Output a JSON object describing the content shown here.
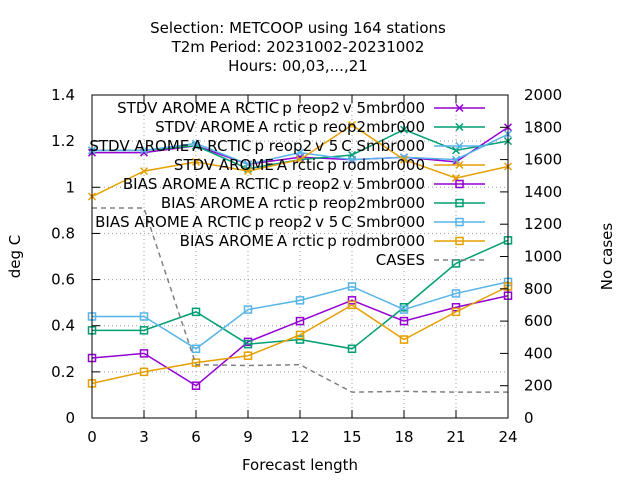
{
  "chart_data": {
    "type": "line",
    "title_lines": [
      "Selection: METCOOP using   164 stations",
      "T2m   Period: 20231002-20231002",
      "Hours:  00,03,...,21"
    ],
    "xlabel": "Forecast length",
    "ylabel": "deg C",
    "y2label": "No cases",
    "x": [
      0,
      3,
      6,
      9,
      12,
      15,
      18,
      21,
      24
    ],
    "xlim": [
      0,
      24
    ],
    "ylim": [
      0,
      1.4
    ],
    "y2lim": [
      0,
      2000
    ],
    "yticks": [
      "0",
      "0.2",
      "0.4",
      "0.6",
      "0.8",
      "1",
      "1.2",
      "1.4"
    ],
    "y2ticks": [
      "0",
      "200",
      "400",
      "600",
      "800",
      "1000",
      "1200",
      "1400",
      "1600",
      "1800",
      "2000"
    ],
    "grid": true,
    "legend_position": "top-right",
    "series": [
      {
        "name": "STDV AROME_ARCTIC_preop2_v5mbr000",
        "legend_label": "STDV AROME A RCTIC p reop2 v 5mbr000",
        "color": "#9400d3",
        "marker": "x",
        "values": [
          1.15,
          1.15,
          1.18,
          1.1,
          1.13,
          1.12,
          1.13,
          1.11,
          1.26
        ]
      },
      {
        "name": "STDV AROME_Arctic_preop2mbr000",
        "legend_label": "STDV AROME A rctic p reop2mbr000",
        "color": "#009e73",
        "marker": "x",
        "values": [
          1.16,
          1.16,
          1.18,
          1.08,
          1.12,
          1.14,
          1.25,
          1.16,
          1.2
        ]
      },
      {
        "name": "STDV AROME_ARCTIC_preop2_v5_CSmbr000",
        "legend_label": "STDV AROME A RCTIC p reop2 v 5 C Smbr000",
        "color": "#56b4e9",
        "marker": "x",
        "values": [
          1.16,
          1.16,
          1.19,
          1.1,
          1.15,
          1.12,
          1.13,
          1.12,
          1.23
        ]
      },
      {
        "name": "STDV AROME_Arctic_prodmbr000",
        "legend_label": "STDV AROME A rctic p rodmbr000",
        "color": "#e69f00",
        "marker": "x",
        "values": [
          0.96,
          1.07,
          1.11,
          1.07,
          1.12,
          1.27,
          1.12,
          1.04,
          1.09
        ]
      },
      {
        "name": "BIAS AROME_ARCTIC_preop2_v5mbr000",
        "legend_label": "BIAS AROME A RCTIC p reop2 v 5mbr000",
        "color": "#9400d3",
        "marker": "square",
        "values": [
          0.26,
          0.28,
          0.14,
          0.33,
          0.42,
          0.51,
          0.42,
          0.48,
          0.53
        ]
      },
      {
        "name": "BIAS AROME_Arctic_preop2mbr000",
        "legend_label": "BIAS AROME A rctic p reop2mbr000",
        "color": "#009e73",
        "marker": "square",
        "values": [
          0.38,
          0.38,
          0.46,
          0.32,
          0.34,
          0.3,
          0.48,
          0.67,
          0.77
        ]
      },
      {
        "name": "BIAS AROME_ARCTIC_preop2_v5_CSmbr000",
        "legend_label": "BIAS AROME A RCTIC p reop2 v 5 C Smbr000",
        "color": "#56b4e9",
        "marker": "square",
        "values": [
          0.44,
          0.44,
          0.3,
          0.47,
          0.51,
          0.57,
          0.47,
          0.54,
          0.59
        ]
      },
      {
        "name": "BIAS AROME_Arctic_prodmbr000",
        "legend_label": "BIAS AROME A rctic p rodmbr000",
        "color": "#e69f00",
        "marker": "square",
        "values": [
          0.15,
          0.2,
          0.24,
          0.27,
          0.36,
          0.49,
          0.34,
          0.46,
          0.57
        ]
      },
      {
        "name": "CASES",
        "legend_label": "CASES",
        "color": "#808080",
        "marker": "none",
        "dashed": true,
        "axis": "y2",
        "values": [
          1300,
          1300,
          330,
          325,
          330,
          160,
          165,
          160,
          160
        ]
      }
    ]
  }
}
